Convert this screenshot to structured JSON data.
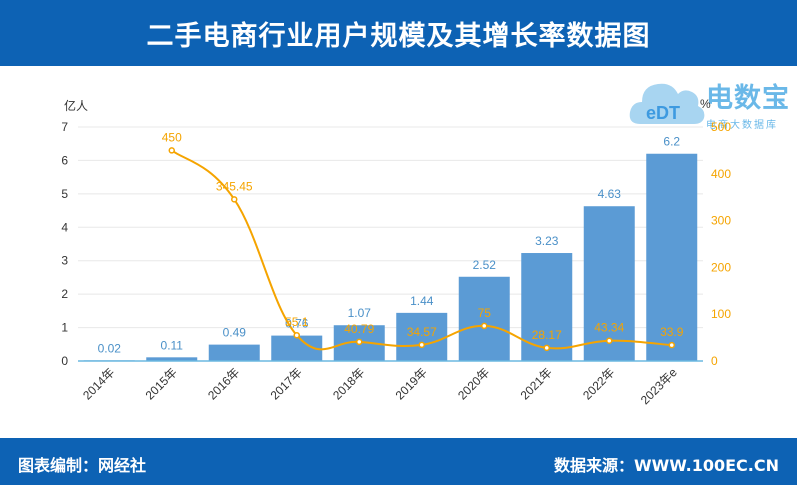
{
  "header": {
    "title": "二手电商行业用户规模及其增长率数据图"
  },
  "logo": {
    "title": "电数宝",
    "subtitle": "电商大数据库",
    "badge": "eDT"
  },
  "footer": {
    "left": "图表编制：网经社",
    "right": "数据来源：WWW.100EC.CN"
  },
  "colors": {
    "bar": "#5b9bd5",
    "line": "#f5a400",
    "header": "#0d62b4"
  },
  "chart_data": {
    "type": "bar",
    "categories": [
      "2014年",
      "2015年",
      "2016年",
      "2017年",
      "2018年",
      "2019年",
      "2020年",
      "2021年",
      "2022年",
      "2023年e"
    ],
    "series": [
      {
        "values": [
          0.02,
          0.11,
          0.49,
          0.76,
          1.07,
          1.44,
          2.52,
          3.23,
          4.63,
          6.2
        ],
        "type": "bar",
        "axis": "left"
      },
      {
        "values": [
          null,
          450,
          345.45,
          55.1,
          40.79,
          34.57,
          75,
          28.17,
          43.34,
          33.9
        ],
        "type": "line",
        "axis": "right"
      }
    ],
    "y_left": {
      "label": "亿人",
      "ylim": [
        0,
        7
      ],
      "ticks": [
        0,
        1,
        2,
        3,
        4,
        5,
        6,
        7
      ]
    },
    "y_right": {
      "label": "%",
      "ylim": [
        0,
        500
      ],
      "ticks": [
        0,
        100,
        200,
        300,
        400,
        500
      ]
    },
    "bar_labels": [
      "0.02",
      "0.11",
      "0.49",
      "0.76",
      "1.07",
      "1.44",
      "2.52",
      "3.23",
      "4.63",
      "6.2"
    ],
    "line_labels": [
      "",
      "450",
      "345.45",
      "55.1",
      "40.79",
      "34.57",
      "75",
      "28.17",
      "43.34",
      "33.9"
    ],
    "grid": true,
    "legend": "none"
  }
}
